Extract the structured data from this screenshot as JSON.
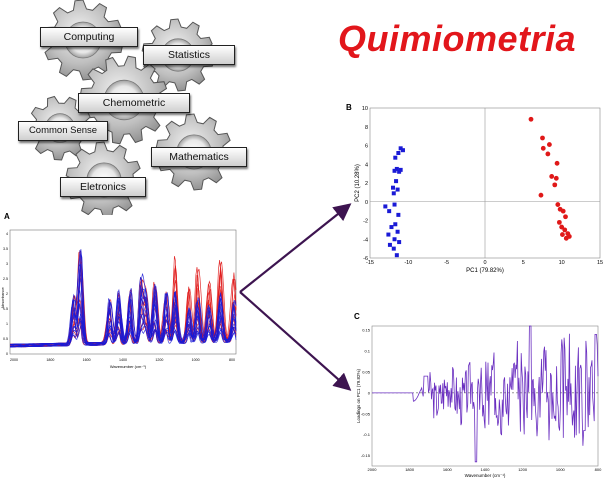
{
  "title": "Quimiometria",
  "gears": [
    {
      "label": "Computing"
    },
    {
      "label": "Statistics"
    },
    {
      "label": "Chemometric"
    },
    {
      "label": "Common Sense"
    },
    {
      "label": "Mathematics"
    },
    {
      "label": "Eletronics"
    }
  ],
  "panels": {
    "a": {
      "letter": "A",
      "ylabel": "Absorbance",
      "xlabel": "Wavenumber (cm⁻¹)",
      "xticks": [
        "2000",
        "1800",
        "1600",
        "1400",
        "1200",
        "1000",
        "800"
      ],
      "yticks": [
        "0",
        "0.5",
        "1",
        "1.5",
        "2",
        "2.5",
        "3",
        "3.5",
        "4"
      ]
    },
    "b": {
      "letter": "B",
      "xlabel": "PC1 (79.82%)",
      "ylabel": "PC2 (10.28%)",
      "xticks": [
        "-15",
        "-10",
        "-5",
        "0",
        "5",
        "10",
        "15"
      ],
      "yticks": [
        "-6",
        "-4",
        "-2",
        "0",
        "2",
        "4",
        "6",
        "8",
        "10"
      ]
    },
    "c": {
      "letter": "C",
      "xlabel": "Wavenumber (cm⁻¹)",
      "ylabel": "Loadings on PC1 (79.82%)",
      "xticks": [
        "2000",
        "1800",
        "1600",
        "1400",
        "1200",
        "1000",
        "800"
      ],
      "yticks": [
        "-0.15",
        "-0.1",
        "-0.05",
        "0",
        "0.05",
        "0.1",
        "0.15"
      ]
    }
  },
  "colors": {
    "title": "#e2161b",
    "blue_series": "#1a1ad6",
    "red_series": "#e01818",
    "loadings": "#6a2fc0",
    "arrow": "#3d1450"
  },
  "chart_data": [
    {
      "type": "scatter",
      "xlabel": "PC1 (79.82%)",
      "ylabel": "PC2 (10.28%)",
      "xlim": [
        -15,
        15
      ],
      "ylim": [
        -6,
        10
      ],
      "series": [
        {
          "marker": "square",
          "color": "#1a1ad6",
          "points": [
            [
              -11,
              5.7
            ],
            [
              -11.3,
              5.2
            ],
            [
              -10.7,
              5.5
            ],
            [
              -11.7,
              4.7
            ],
            [
              -11.5,
              3.5
            ],
            [
              -11.2,
              3.2
            ],
            [
              -11.8,
              3.3
            ],
            [
              -11,
              3.4
            ],
            [
              -11.6,
              2.2
            ],
            [
              -12,
              1.5
            ],
            [
              -11.4,
              1.3
            ],
            [
              -11.9,
              0.9
            ],
            [
              -13,
              -0.5
            ],
            [
              -12.5,
              -1
            ],
            [
              -11.8,
              -0.3
            ],
            [
              -11.3,
              -1.4
            ],
            [
              -12.2,
              -2.7
            ],
            [
              -11.7,
              -2.4
            ],
            [
              -11.4,
              -3.2
            ],
            [
              -12.6,
              -3.5
            ],
            [
              -11.8,
              -4
            ],
            [
              -11.2,
              -4.3
            ],
            [
              -12.4,
              -4.6
            ],
            [
              -11.9,
              -5
            ],
            [
              -11.5,
              -5.7
            ]
          ]
        },
        {
          "marker": "circle",
          "color": "#e01818",
          "points": [
            [
              6,
              8.8
            ],
            [
              7.5,
              6.8
            ],
            [
              8.4,
              6.1
            ],
            [
              7.6,
              5.7
            ],
            [
              8.2,
              5.1
            ],
            [
              9.4,
              4.1
            ],
            [
              8.7,
              2.7
            ],
            [
              9.3,
              2.5
            ],
            [
              9.1,
              1.8
            ],
            [
              7.3,
              0.7
            ],
            [
              9.5,
              -0.3
            ],
            [
              9.8,
              -0.8
            ],
            [
              10.2,
              -1
            ],
            [
              10.5,
              -1.6
            ],
            [
              9.7,
              -2.2
            ],
            [
              10,
              -2.7
            ],
            [
              10.4,
              -3
            ],
            [
              10.8,
              -3.4
            ],
            [
              10.1,
              -3.5
            ],
            [
              10.6,
              -3.9
            ],
            [
              11,
              -3.7
            ]
          ]
        }
      ]
    }
  ]
}
